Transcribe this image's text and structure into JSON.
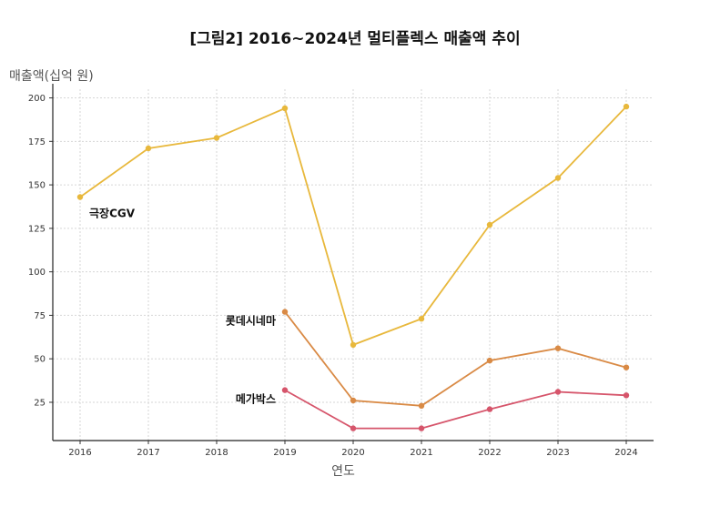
{
  "chart_data": {
    "type": "line",
    "title": "[그림2] 2016~2024년 멀티플렉스 매출액 추이",
    "xlabel": "연도",
    "ylabel": "매출액(십억 원)",
    "x": [
      2016,
      2017,
      2018,
      2019,
      2020,
      2021,
      2022,
      2023,
      2024
    ],
    "x_tick_labels": [
      "2016",
      "2017",
      "2018",
      "2019",
      "2020",
      "2021",
      "2022",
      "2023",
      "2024"
    ],
    "y_ticks": [
      25,
      50,
      75,
      100,
      125,
      150,
      175,
      200
    ],
    "y_tick_labels": [
      "25",
      "50",
      "75",
      "100",
      "125",
      "150",
      "175",
      "200"
    ],
    "ylim": [
      3,
      205
    ],
    "grid": true,
    "series": [
      {
        "name": "극장CGV",
        "color": "#e8b83c",
        "x": [
          2016,
          2017,
          2018,
          2019,
          2020,
          2021,
          2022,
          2023,
          2024
        ],
        "values": [
          143,
          171,
          177,
          194,
          58,
          73,
          127,
          154,
          195
        ],
        "label_anchor": "below-right-of-first-point"
      },
      {
        "name": "롯데시네마",
        "color": "#d98a45",
        "x": [
          2019,
          2020,
          2021,
          2022,
          2023,
          2024
        ],
        "values": [
          77,
          26,
          23,
          49,
          56,
          45
        ],
        "label_anchor": "left-of-first-point"
      },
      {
        "name": "메가박스",
        "color": "#d6556b",
        "x": [
          2019,
          2020,
          2021,
          2022,
          2023,
          2024
        ],
        "values": [
          32,
          10,
          10,
          21,
          31,
          29
        ],
        "label_anchor": "left-of-first-point"
      }
    ]
  }
}
